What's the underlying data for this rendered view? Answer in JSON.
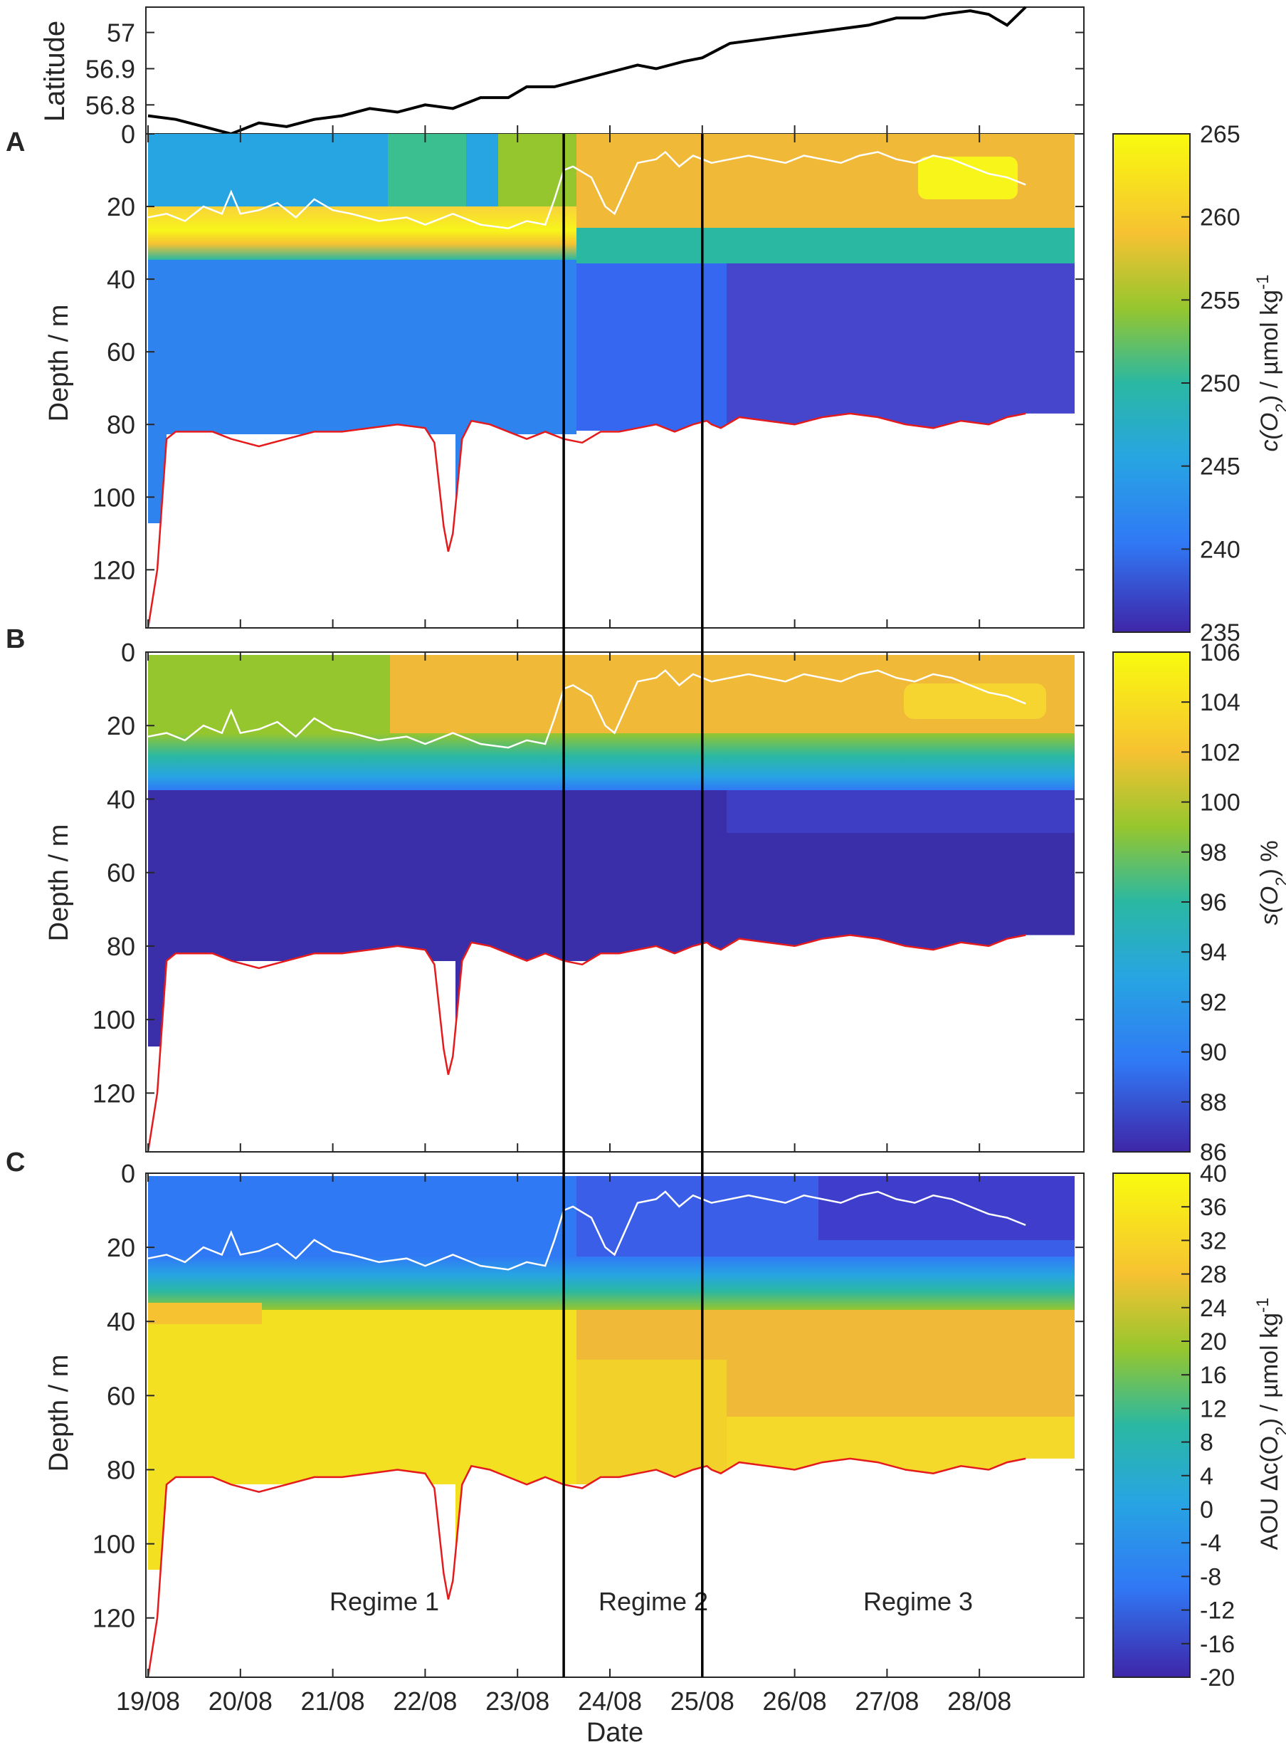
{
  "chart_data": [
    {
      "type": "line",
      "panel_id": "latitude",
      "ylabel": "Latitude",
      "ylim": [
        56.72,
        57.07
      ],
      "yticks": [
        56.8,
        56.9,
        57
      ],
      "ytick_labels": [
        "56.8",
        "56.9",
        "57"
      ],
      "series": [
        {
          "name": "Ship latitude",
          "color": "#000000",
          "x": [
            0,
            0.3,
            0.6,
            0.9,
            1.2,
            1.5,
            1.8,
            2.1,
            2.4,
            2.7,
            3.0,
            3.3,
            3.6,
            3.9,
            4.1,
            4.4,
            4.7,
            5.0,
            5.3,
            5.5,
            5.8,
            6.0,
            6.3,
            6.6,
            6.9,
            7.2,
            7.5,
            7.8,
            8.1,
            8.4,
            8.6,
            8.9,
            9.1,
            9.3,
            9.5
          ],
          "y": [
            56.77,
            56.76,
            56.74,
            56.72,
            56.75,
            56.74,
            56.76,
            56.77,
            56.79,
            56.78,
            56.8,
            56.79,
            56.82,
            56.82,
            56.85,
            56.85,
            56.87,
            56.89,
            56.91,
            56.9,
            56.92,
            56.93,
            56.97,
            56.98,
            56.99,
            57.0,
            57.01,
            57.02,
            57.04,
            57.04,
            57.05,
            57.06,
            57.05,
            57.02,
            57.07
          ]
        }
      ]
    },
    {
      "type": "heatmap",
      "panel_id": "A",
      "panel_label": "A",
      "ylabel": "Depth / m",
      "ylim": [
        0,
        136
      ],
      "yticks": [
        0,
        20,
        40,
        60,
        80,
        100,
        120
      ],
      "colorbar": {
        "label_prefix": "c(O",
        "label_sub": "2",
        "label_suffix": ") / µmol kg",
        "label_sup": "-1",
        "range": [
          235,
          265
        ],
        "ticks": [
          "265",
          "260",
          "255",
          "250",
          "245",
          "240",
          "235"
        ]
      },
      "layers": {
        "surface": {
          "value": 252,
          "value_late": 262,
          "regime3_patch": 264
        },
        "thermocline_peak": 263,
        "deep": {
          "regime1": 242,
          "regime2": 241,
          "regime3": 238
        }
      }
    },
    {
      "type": "heatmap",
      "panel_id": "B",
      "panel_label": "B",
      "ylabel": "Depth / m",
      "ylim": [
        0,
        136
      ],
      "yticks": [
        0,
        20,
        40,
        60,
        80,
        100,
        120
      ],
      "colorbar": {
        "label_prefix": "s(O",
        "label_sub": "2",
        "label_suffix": ") %",
        "label_sup": "",
        "range": [
          86,
          106
        ],
        "ticks": [
          "106",
          "104",
          "102",
          "100",
          "98",
          "96",
          "94",
          "92",
          "90",
          "88",
          "86"
        ]
      },
      "layers": {
        "surface": {
          "value": 100,
          "value_late": 103
        },
        "deep": {
          "value": 86.5
        }
      }
    },
    {
      "type": "heatmap",
      "panel_id": "C",
      "panel_label": "C",
      "ylabel": "Depth / m",
      "ylim": [
        0,
        136
      ],
      "yticks": [
        0,
        20,
        40,
        60,
        80,
        100,
        120
      ],
      "xlabel": "Date",
      "xticks": [
        "19/08",
        "20/08",
        "21/08",
        "22/08",
        "23/08",
        "24/08",
        "25/08",
        "26/08",
        "27/08",
        "28/08"
      ],
      "colorbar": {
        "label_prefix": "AOU Δc(O",
        "label_sub": "2",
        "label_suffix": ") / µmol kg",
        "label_sup": "-1",
        "range": [
          -20,
          40
        ],
        "ticks": [
          "40",
          "36",
          "32",
          "28",
          "24",
          "20",
          "16",
          "12",
          "8",
          "4",
          "0",
          "-4",
          "-8",
          "-12",
          "-16",
          "-20"
        ]
      },
      "layers": {
        "surface": {
          "value": -8,
          "value_late": -16
        },
        "deep": {
          "regime1": 39,
          "regime2": 36,
          "regime3": 32
        }
      },
      "annotations": [
        "Regime 1",
        "Regime 2",
        "Regime 3"
      ]
    }
  ],
  "overlays": {
    "mixed_layer_depth": {
      "color": "#ffffff",
      "x": [
        0,
        0.2,
        0.4,
        0.6,
        0.8,
        0.9,
        1.0,
        1.2,
        1.4,
        1.6,
        1.8,
        2.0,
        2.2,
        2.5,
        2.8,
        3.0,
        3.3,
        3.6,
        3.9,
        4.1,
        4.3,
        4.4,
        4.5,
        4.6,
        4.8,
        4.95,
        5.05,
        5.3,
        5.5,
        5.6,
        5.75,
        5.9,
        6.1,
        6.3,
        6.5,
        6.7,
        6.9,
        7.1,
        7.3,
        7.5,
        7.7,
        7.9,
        8.1,
        8.3,
        8.5,
        8.7,
        8.9,
        9.1,
        9.3,
        9.5
      ],
      "y": [
        23,
        22,
        24,
        20,
        22,
        16,
        22,
        21,
        19,
        23,
        18,
        21,
        22,
        24,
        23,
        25,
        22,
        25,
        26,
        24,
        25,
        18,
        10,
        9,
        12,
        20,
        22,
        8,
        7,
        5,
        9,
        6,
        8,
        7,
        6,
        7,
        8,
        6,
        7,
        8,
        6,
        5,
        7,
        8,
        6,
        7,
        9,
        11,
        12,
        14
      ]
    },
    "seafloor": {
      "color": "#e41a1c",
      "x": [
        0,
        0.1,
        0.2,
        0.3,
        0.5,
        0.7,
        0.9,
        1.2,
        1.5,
        1.8,
        2.1,
        2.4,
        2.7,
        3.0,
        3.1,
        3.2,
        3.25,
        3.3,
        3.4,
        3.5,
        3.7,
        3.9,
        4.1,
        4.3,
        4.5,
        4.7,
        4.9,
        5.1,
        5.3,
        5.5,
        5.7,
        5.9,
        6.05,
        6.1,
        6.2,
        6.4,
        6.7,
        7.0,
        7.3,
        7.6,
        7.9,
        8.2,
        8.5,
        8.8,
        9.1,
        9.3,
        9.5
      ],
      "y": [
        136,
        120,
        84,
        82,
        82,
        82,
        84,
        86,
        84,
        82,
        82,
        81,
        80,
        81,
        85,
        108,
        115,
        110,
        84,
        79,
        80,
        82,
        84,
        82,
        84,
        85,
        82,
        82,
        81,
        80,
        82,
        80,
        79,
        80,
        81,
        78,
        79,
        80,
        78,
        77,
        78,
        80,
        81,
        79,
        80,
        78,
        77
      ]
    },
    "regime_boundaries_days": [
      4.5,
      6.0
    ]
  }
}
